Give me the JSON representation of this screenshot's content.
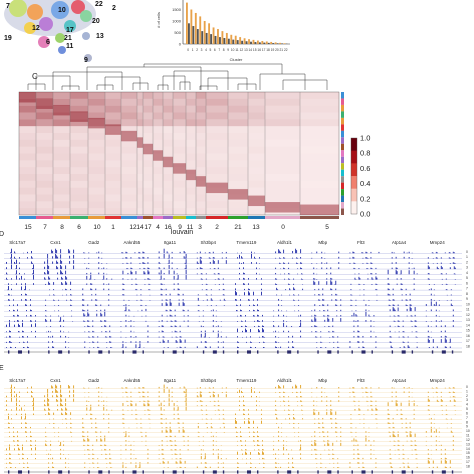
{
  "panel_c": {
    "letter": "C",
    "xlabel": "louvain",
    "col_labels": [
      "15",
      "7",
      "8",
      "6",
      "10",
      "1",
      "12",
      "14",
      "17",
      "4",
      "16",
      "9",
      "11",
      "3",
      "2",
      "21",
      "13",
      "0",
      "5"
    ],
    "colorbar_ticks": [
      "1.0",
      "0.8",
      "0.6",
      "0.4",
      "0.2",
      "0.0"
    ]
  },
  "panel_d": {
    "letter": "D"
  },
  "panel_e": {
    "letter": "E"
  },
  "gene_labels": [
    "Slc17a7",
    "Cxn1",
    "Gad2",
    "Ankrd55",
    "Itga11",
    "Sh3bp4",
    "Tmem119",
    "Aldh1l1",
    "Mbp",
    "Flt3",
    "Atp1a4",
    "Mmp24"
  ],
  "track_colors": {
    "panel_d": "#1f2aa8",
    "panel_e": "#e0a020"
  },
  "heatmap_colors": {
    "low": "#fbeeee",
    "high": "#8b0e1a"
  },
  "umap_labels": [
    "7",
    "10",
    "22",
    "2",
    "20",
    "12",
    "19",
    "17",
    "11",
    "21",
    "13",
    "6",
    "9"
  ],
  "chart_data": {
    "type": "bar",
    "xlabel": "Cluster",
    "ylabel": "# of cells",
    "series": [
      {
        "color": "#e8a24a",
        "values": [
          1800,
          1500,
          1350,
          1200,
          1000,
          900,
          720,
          650,
          560,
          480,
          400,
          360,
          300,
          250,
          210,
          180,
          150,
          130,
          110,
          90,
          70,
          50,
          30
        ]
      },
      {
        "color": "#555555",
        "values": [
          900,
          780,
          650,
          560,
          480,
          430,
          350,
          300,
          260,
          230,
          190,
          170,
          140,
          120,
          100,
          85,
          70,
          60,
          50,
          40,
          30,
          25,
          15
        ]
      }
    ],
    "ylim": [
      0,
      2000
    ],
    "yticks": [
      "1500",
      "1000",
      "500",
      "0"
    ]
  }
}
